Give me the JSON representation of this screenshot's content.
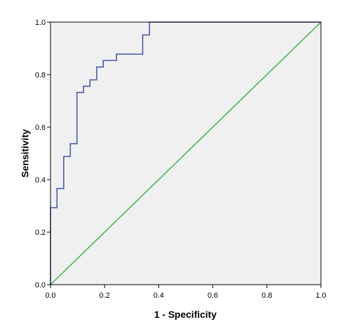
{
  "chart_data": {
    "type": "line",
    "xlabel": "1 - Specificity",
    "ylabel": "Sensitivity",
    "xlim": [
      0.0,
      1.0
    ],
    "ylim": [
      0.0,
      1.0
    ],
    "xticks": [
      "0.0",
      "0.2",
      "0.4",
      "0.6",
      "0.8",
      "1.0"
    ],
    "yticks": [
      "0.0",
      "0.2",
      "0.4",
      "0.6",
      "0.8",
      "1.0"
    ],
    "grid": false,
    "legend": "none",
    "plot_background": "#f0f0f0",
    "series": [
      {
        "kind": "roc-curve",
        "color": "#3f51a3",
        "points": [
          [
            0.0,
            0.0
          ],
          [
            0.0,
            0.293
          ],
          [
            0.024,
            0.293
          ],
          [
            0.024,
            0.366
          ],
          [
            0.049,
            0.366
          ],
          [
            0.049,
            0.488
          ],
          [
            0.073,
            0.488
          ],
          [
            0.073,
            0.537
          ],
          [
            0.098,
            0.537
          ],
          [
            0.098,
            0.732
          ],
          [
            0.122,
            0.732
          ],
          [
            0.122,
            0.756
          ],
          [
            0.146,
            0.756
          ],
          [
            0.146,
            0.78
          ],
          [
            0.171,
            0.78
          ],
          [
            0.171,
            0.829
          ],
          [
            0.195,
            0.829
          ],
          [
            0.195,
            0.854
          ],
          [
            0.244,
            0.854
          ],
          [
            0.244,
            0.878
          ],
          [
            0.341,
            0.878
          ],
          [
            0.341,
            0.951
          ],
          [
            0.366,
            0.951
          ],
          [
            0.366,
            1.0
          ],
          [
            1.0,
            1.0
          ]
        ]
      },
      {
        "kind": "reference-line",
        "color": "#3cb44b",
        "points": [
          [
            0.0,
            0.0
          ],
          [
            1.0,
            1.0
          ]
        ]
      }
    ]
  }
}
